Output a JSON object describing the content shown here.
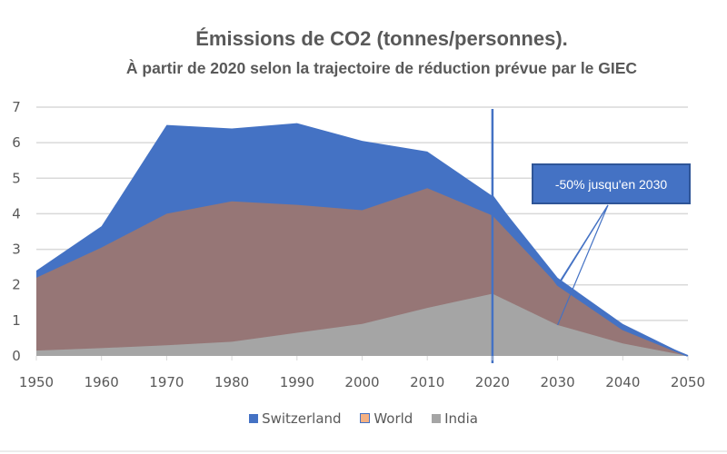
{
  "chart_data": {
    "type": "area",
    "title": "Émissions de CO2 (tonnes/personnes).",
    "subtitle": "À partir de 2020 selon la trajectoire de réduction prévue par le GIEC",
    "x": [
      1950,
      1960,
      1970,
      1980,
      1990,
      2000,
      2010,
      2020,
      2030,
      2040,
      2050
    ],
    "x_tick_labels": [
      "1950",
      "1960",
      "1970",
      "1980",
      "1990",
      "2000",
      "2010",
      "2020",
      "2030",
      "2040",
      "2050"
    ],
    "y_tick_labels": [
      "0",
      "1",
      "2",
      "3",
      "4",
      "5",
      "6",
      "7"
    ],
    "ylim": [
      0,
      7
    ],
    "grid": true,
    "legend_position": "bottom",
    "series": [
      {
        "name": "Switzerland",
        "color": "#4472c4",
        "values": [
          2.4,
          3.65,
          6.5,
          6.4,
          6.55,
          6.05,
          5.75,
          4.5,
          2.2,
          0.9,
          0
        ]
      },
      {
        "name": "World",
        "color": "#f4b183",
        "values": [
          2.2,
          3.05,
          4.0,
          4.35,
          4.25,
          4.1,
          4.72,
          3.95,
          2.0,
          0.75,
          0
        ]
      },
      {
        "name": "India",
        "color": "#a5a5a5",
        "values": [
          0.15,
          0.22,
          0.3,
          0.4,
          0.65,
          0.9,
          1.35,
          1.75,
          0.87,
          0.35,
          0
        ]
      }
    ],
    "overlap_color": "#967676",
    "marker_line_x": 2020,
    "annotation": {
      "text": "-50% jusqu'en 2030",
      "points_to": [
        2030,
        2030
      ]
    }
  }
}
